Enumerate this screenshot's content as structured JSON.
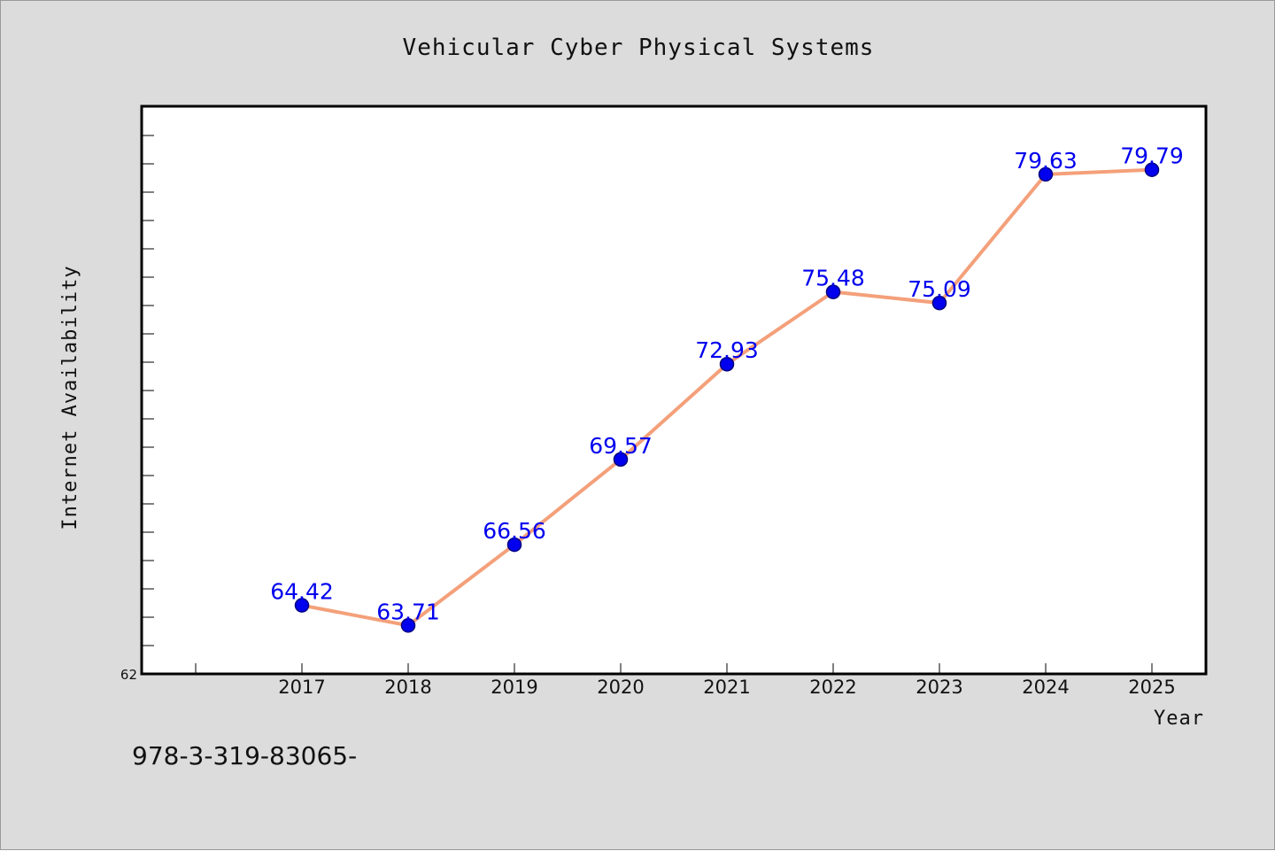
{
  "chart_data": {
    "type": "line",
    "title": "Vehicular Cyber Physical Systems",
    "xlabel": "Year",
    "ylabel": "Internet Availability",
    "x": [
      "2017",
      "2018",
      "2019",
      "2020",
      "2021",
      "2022",
      "2023",
      "2024",
      "2025"
    ],
    "series": [
      {
        "values": [
          64.42,
          63.71,
          66.56,
          69.57,
          72.93,
          75.48,
          75.09,
          79.63,
          79.79
        ],
        "data_labels": [
          "64.42",
          "63.71",
          "66.56",
          "69.57",
          "72.93",
          "75.48",
          "75.09",
          "79.63",
          "79.79"
        ]
      }
    ],
    "y_tick_labels": [
      {
        "value": 62,
        "label": "62"
      }
    ],
    "ylim": [
      62,
      82
    ],
    "x_range": [
      2015.5,
      2025.5
    ],
    "y_minor_tick_step": 1,
    "grid": false,
    "legend": "none",
    "colors": {
      "line": "#f4a07a",
      "marker_fill": "#0000ee",
      "marker_edge": "#000080",
      "data_label": "#0000ee",
      "background": "#dcdcdc",
      "plot_background": "#ffffff"
    }
  },
  "footnote": "978-3-319-83065-"
}
